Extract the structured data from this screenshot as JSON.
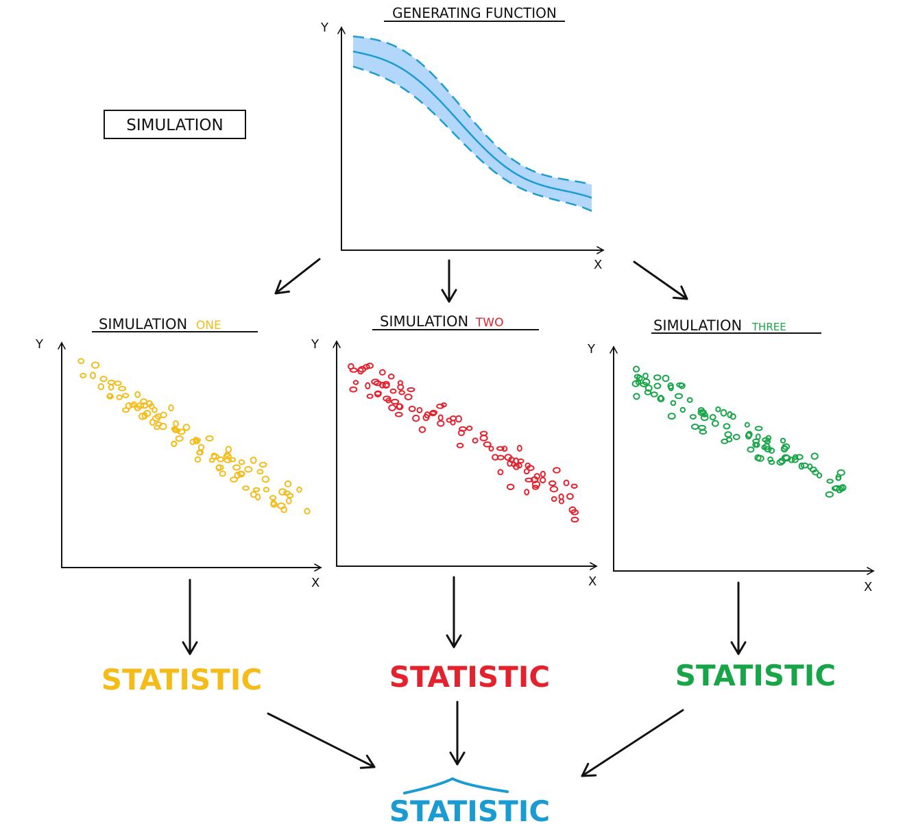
{
  "title": "GENERATING FUNCTION",
  "box_label": "SIMULATION",
  "axis_labels": {
    "x": "X",
    "y": "Y"
  },
  "colors": {
    "ink": "#111111",
    "band_fill": "#b3d7fb",
    "curve": "#1a9bd1",
    "one": "#f5bb19",
    "two": "#e4222e",
    "three": "#17a548",
    "final": "#1a9bd1"
  },
  "simulations": [
    {
      "prefix": "SIMULATION",
      "suffix": "ONE",
      "color_key": "one",
      "statistic": "STATISTIC"
    },
    {
      "prefix": "SIMULATION",
      "suffix": "TWO",
      "color_key": "two",
      "statistic": "STATISTIC"
    },
    {
      "prefix": "SIMULATION",
      "suffix": "THREE",
      "color_key": "three",
      "statistic": "STATISTIC"
    }
  ],
  "final_statistic": "STATISTIC",
  "icons": {
    "final_hat": "hat-icon"
  }
}
